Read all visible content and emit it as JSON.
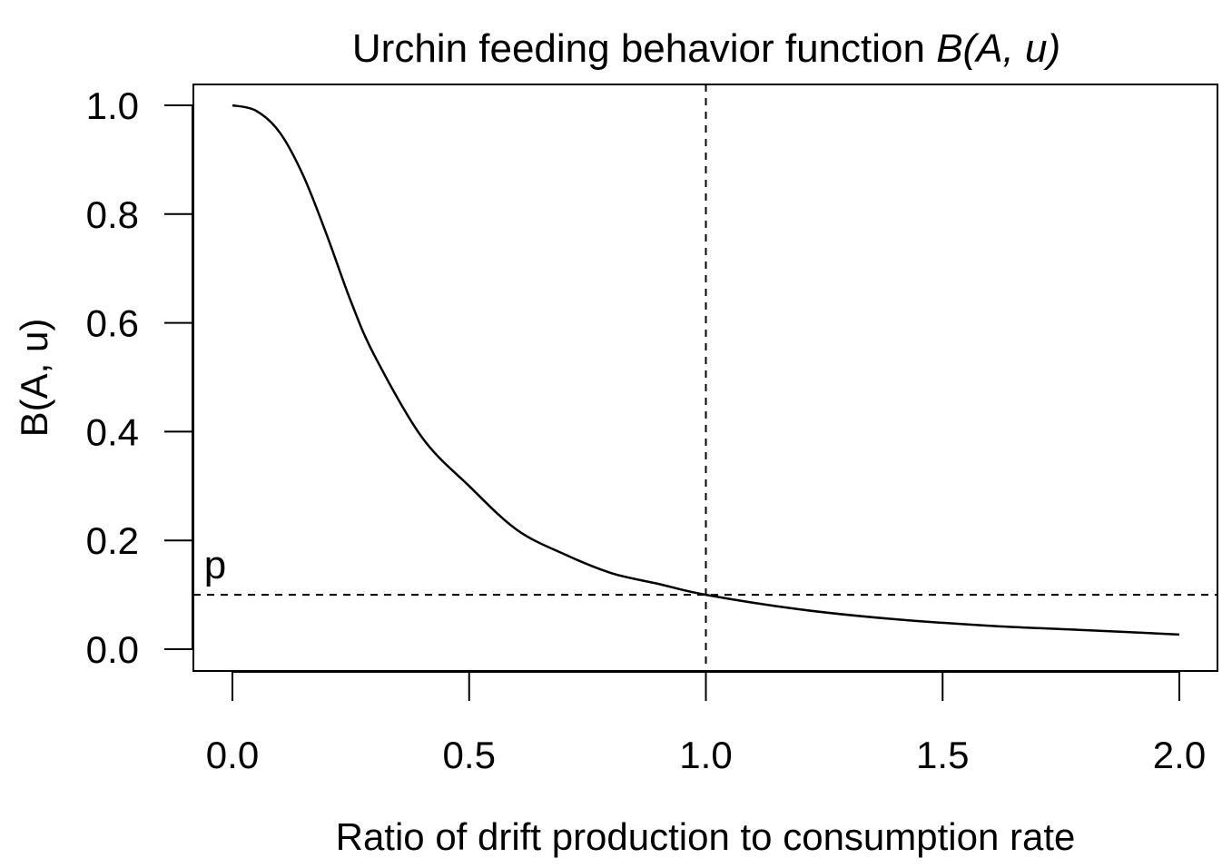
{
  "chart_data": {
    "type": "line",
    "title": {
      "main": "Urchin feeding behavior function ",
      "italic": "B(A, u)"
    },
    "xlabel": "Ratio of drift production to consumption rate",
    "ylabel": "B(A, u)",
    "xlim": [
      0.0,
      2.0
    ],
    "ylim": [
      0.0,
      1.0
    ],
    "xticks": [
      0.0,
      0.5,
      1.0,
      1.5,
      2.0
    ],
    "xtick_labels": [
      "0.0",
      "0.5",
      "1.0",
      "1.5",
      "2.0"
    ],
    "yticks": [
      0.0,
      0.2,
      0.4,
      0.6,
      0.8,
      1.0
    ],
    "ytick_labels": [
      "0.0",
      "0.2",
      "0.4",
      "0.6",
      "0.8",
      "1.0"
    ],
    "grid": false,
    "series": [
      {
        "x": [
          0.0,
          0.05,
          0.1,
          0.15,
          0.2,
          0.25,
          0.3,
          0.4,
          0.5,
          0.6,
          0.7,
          0.8,
          0.9,
          1.0,
          1.2,
          1.4,
          1.6,
          1.8,
          2.0
        ],
        "y": [
          1.0,
          0.99,
          0.95,
          0.87,
          0.76,
          0.64,
          0.54,
          0.39,
          0.3,
          0.22,
          0.175,
          0.14,
          0.12,
          0.1,
          0.073,
          0.055,
          0.043,
          0.035,
          0.027
        ],
        "color": "#000000"
      }
    ],
    "reference_lines": {
      "vertical_x": 1.0,
      "horizontal_y": 0.1
    },
    "annotations": [
      {
        "text": "p",
        "x": -0.06,
        "y": 0.13
      }
    ]
  }
}
